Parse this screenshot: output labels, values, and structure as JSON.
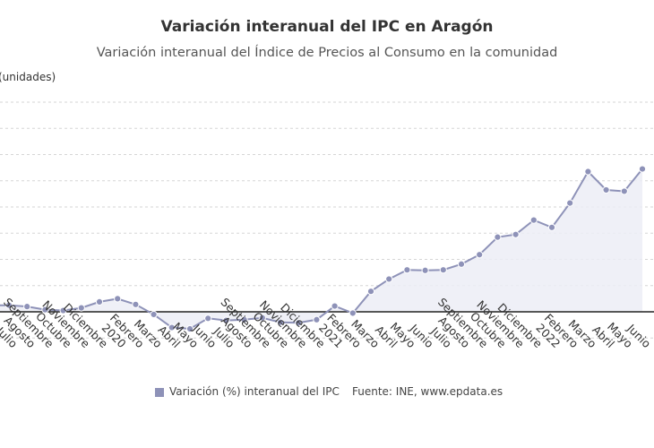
{
  "chart_data": {
    "type": "area",
    "title": "Variación interanual del IPC en Aragón",
    "subtitle": "Variación interanual del Índice de Precios al Consumo en la comunidad",
    "ylabel": "(unidades)",
    "ylim": [
      -1,
      8
    ],
    "reference_line": 0,
    "x": [
      "Julio",
      "Agosto",
      "Septiembre",
      "Octubre",
      "Noviembre",
      "Diciembre",
      "2020",
      "Febrero",
      "Marzo",
      "Abril",
      "Mayo",
      "Junio",
      "Julio",
      "Agosto",
      "Septiembre",
      "Octubre",
      "Noviembre",
      "Diciembre",
      "2021",
      "Febrero",
      "Marzo",
      "Abril",
      "Mayo",
      "Junio",
      "Julio",
      "Agosto",
      "Septiembre",
      "Octubre",
      "Noviembre",
      "Diciembre",
      "2022",
      "Febrero",
      "Marzo",
      "Abril",
      "Mayo",
      "Junio"
    ],
    "series": [
      {
        "name": "Variación (%) interanual del IPC",
        "color": "#8e92b8",
        "values": [
          0.25,
          0.2,
          0.08,
          0.05,
          0.15,
          0.38,
          0.5,
          0.28,
          -0.1,
          -0.6,
          -0.65,
          -0.25,
          -0.33,
          -0.3,
          -0.23,
          -0.4,
          -0.42,
          -0.3,
          0.22,
          -0.05,
          0.78,
          1.25,
          1.6,
          1.58,
          1.6,
          1.82,
          2.18,
          2.85,
          2.95,
          3.5,
          3.22,
          4.15,
          5.35,
          4.65,
          4.6,
          5.45
        ]
      }
    ],
    "first_point_value": 0.25,
    "legend_position": "bottom"
  },
  "legend": {
    "label": "Variación (%) interanual del IPC",
    "source": "Fuente: INE, www.epdata.es"
  }
}
